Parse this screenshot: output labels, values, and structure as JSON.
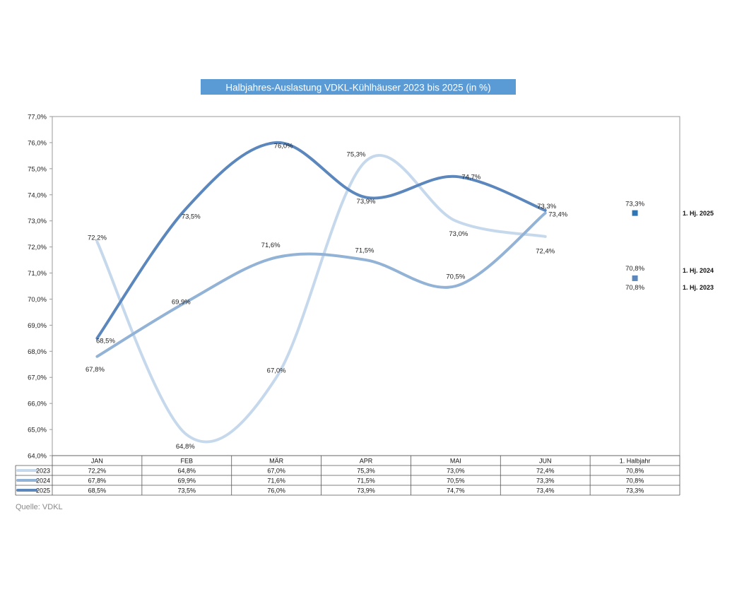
{
  "chart_data": {
    "type": "line",
    "title": "Halbjahres-Auslastung VDKL-Kühlhäuser  2023 bis 2025 (in %)",
    "categories": [
      "JAN",
      "FEB",
      "MÄR",
      "APR",
      "MAI",
      "JUN",
      "1. Halbjahr"
    ],
    "y_ticks": [
      "64,0%",
      "65,0%",
      "66,0%",
      "67,0%",
      "68,0%",
      "69,0%",
      "70,0%",
      "71,0%",
      "72,0%",
      "73,0%",
      "74,0%",
      "75,0%",
      "76,0%",
      "77,0%"
    ],
    "ylim": [
      64,
      77
    ],
    "series": [
      {
        "name": "2023",
        "color": "#c6d9ec",
        "values": [
          72.2,
          64.8,
          67.0,
          75.3,
          73.0,
          72.4,
          70.8
        ],
        "labels": [
          "72,2%",
          "64,8%",
          "67,0%",
          "75,3%",
          "73,0%",
          "72,4%",
          "70,8%"
        ],
        "half_year_label": "1. Hj. 2023"
      },
      {
        "name": "2024",
        "color": "#92b2d6",
        "values": [
          67.8,
          69.9,
          71.6,
          71.5,
          70.5,
          73.3,
          70.8
        ],
        "labels": [
          "67,8%",
          "69,9%",
          "71,6%",
          "71,5%",
          "70,5%",
          "73,3%",
          "70,8%"
        ],
        "half_year_label": "1. Hj. 2024"
      },
      {
        "name": "2025",
        "color": "#5b87bd",
        "values": [
          68.5,
          73.5,
          76.0,
          73.9,
          74.7,
          73.4,
          73.3
        ],
        "labels": [
          "68,5%",
          "73,5%",
          "76,0%",
          "73,9%",
          "74,7%",
          "73,4%",
          "73,3%"
        ],
        "half_year_label": "1. Hj. 2025"
      }
    ],
    "half_year_marker_colors": {
      "2025": "#2e75b6",
      "2024": "#5b87bd"
    },
    "grid": false,
    "legend": "table-below"
  },
  "source": "Quelle: VDKL"
}
